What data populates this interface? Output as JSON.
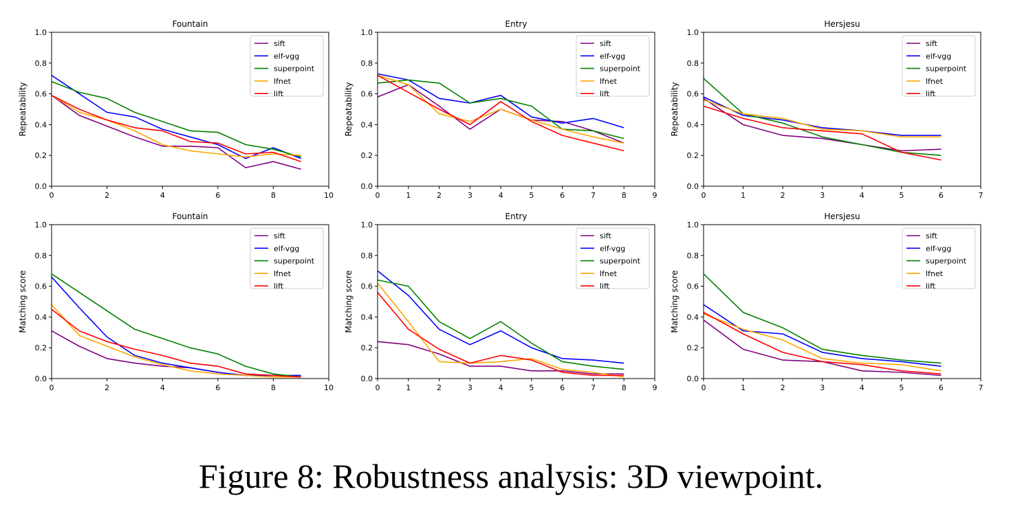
{
  "caption": "Figure 8: Robustness analysis: 3D viewpoint.",
  "series_colors": {
    "sift": "#800080",
    "elf-vgg": "#0000ff",
    "superpoint": "#008000",
    "lfnet": "#ffa500",
    "lift": "#ff0000"
  },
  "chart_data": [
    {
      "type": "line",
      "title": "Fountain",
      "xlabel": "",
      "ylabel": "Repeatability",
      "xlim": [
        0,
        10
      ],
      "ylim": [
        0,
        1
      ],
      "xticks": [
        0,
        2,
        4,
        6,
        8,
        10
      ],
      "yticks": [
        0.0,
        0.2,
        0.4,
        0.6,
        0.8,
        1.0
      ],
      "legend": "top-right",
      "x": [
        0,
        1,
        2,
        3,
        4,
        5,
        6,
        7,
        8,
        9
      ],
      "series": [
        {
          "name": "sift",
          "values": [
            0.59,
            0.46,
            0.39,
            0.32,
            0.26,
            0.26,
            0.25,
            0.12,
            0.16,
            0.11
          ]
        },
        {
          "name": "elf-vgg",
          "values": [
            0.72,
            0.6,
            0.48,
            0.45,
            0.37,
            0.32,
            0.27,
            0.18,
            0.25,
            0.18
          ]
        },
        {
          "name": "superpoint",
          "values": [
            0.68,
            0.61,
            0.57,
            0.48,
            0.42,
            0.36,
            0.35,
            0.27,
            0.24,
            0.19
          ]
        },
        {
          "name": "lfnet",
          "values": [
            0.59,
            0.48,
            0.43,
            0.36,
            0.27,
            0.23,
            0.21,
            0.19,
            0.21,
            0.2
          ]
        },
        {
          "name": "lift",
          "values": [
            0.59,
            0.5,
            0.43,
            0.38,
            0.36,
            0.29,
            0.28,
            0.21,
            0.22,
            0.16
          ]
        }
      ]
    },
    {
      "type": "line",
      "title": "Entry",
      "xlabel": "",
      "ylabel": "Repeatability",
      "xlim": [
        0,
        9
      ],
      "ylim": [
        0,
        1
      ],
      "xticks": [
        0,
        1,
        2,
        3,
        4,
        5,
        6,
        7,
        8,
        9
      ],
      "yticks": [
        0.0,
        0.2,
        0.4,
        0.6,
        0.8,
        1.0
      ],
      "legend": "top-right",
      "x": [
        0,
        1,
        2,
        3,
        4,
        5,
        6,
        7,
        8
      ],
      "series": [
        {
          "name": "sift",
          "values": [
            0.58,
            0.66,
            0.52,
            0.37,
            0.5,
            0.43,
            0.42,
            0.36,
            0.28
          ]
        },
        {
          "name": "elf-vgg",
          "values": [
            0.73,
            0.69,
            0.57,
            0.54,
            0.59,
            0.45,
            0.41,
            0.44,
            0.38
          ]
        },
        {
          "name": "superpoint",
          "values": [
            0.67,
            0.69,
            0.67,
            0.54,
            0.57,
            0.52,
            0.37,
            0.36,
            0.31
          ]
        },
        {
          "name": "lfnet",
          "values": [
            0.72,
            0.66,
            0.47,
            0.42,
            0.5,
            0.43,
            0.37,
            0.32,
            0.28
          ]
        },
        {
          "name": "lift",
          "values": [
            0.72,
            0.61,
            0.5,
            0.4,
            0.55,
            0.42,
            0.33,
            0.28,
            0.23
          ]
        }
      ]
    },
    {
      "type": "line",
      "title": "Hersjesu",
      "xlabel": "",
      "ylabel": "Repeatability",
      "xlim": [
        0,
        7
      ],
      "ylim": [
        0,
        1
      ],
      "xticks": [
        0,
        1,
        2,
        3,
        4,
        5,
        6,
        7
      ],
      "yticks": [
        0.0,
        0.2,
        0.4,
        0.6,
        0.8,
        1.0
      ],
      "legend": "top-right",
      "x": [
        0,
        1,
        2,
        3,
        4,
        5,
        6
      ],
      "series": [
        {
          "name": "sift",
          "values": [
            0.57,
            0.4,
            0.33,
            0.31,
            0.27,
            0.23,
            0.24
          ]
        },
        {
          "name": "elf-vgg",
          "values": [
            0.58,
            0.46,
            0.43,
            0.38,
            0.36,
            0.33,
            0.33
          ]
        },
        {
          "name": "superpoint",
          "values": [
            0.7,
            0.47,
            0.41,
            0.32,
            0.27,
            0.22,
            0.2
          ]
        },
        {
          "name": "lfnet",
          "values": [
            0.56,
            0.47,
            0.44,
            0.37,
            0.36,
            0.32,
            0.32
          ]
        },
        {
          "name": "lift",
          "values": [
            0.52,
            0.44,
            0.38,
            0.36,
            0.34,
            0.22,
            0.17
          ]
        }
      ]
    },
    {
      "type": "line",
      "title": "Fountain",
      "xlabel": "",
      "ylabel": "Matching score",
      "xlim": [
        0,
        10
      ],
      "ylim": [
        0,
        1
      ],
      "xticks": [
        0,
        2,
        4,
        6,
        8,
        10
      ],
      "yticks": [
        0.0,
        0.2,
        0.4,
        0.6,
        0.8,
        1.0
      ],
      "legend": "top-right",
      "x": [
        0,
        1,
        2,
        3,
        4,
        5,
        6,
        7,
        8,
        9
      ],
      "series": [
        {
          "name": "sift",
          "values": [
            0.31,
            0.21,
            0.13,
            0.1,
            0.08,
            0.07,
            0.04,
            0.02,
            0.02,
            0.02
          ]
        },
        {
          "name": "elf-vgg",
          "values": [
            0.66,
            0.46,
            0.27,
            0.15,
            0.1,
            0.07,
            0.04,
            0.02,
            0.02,
            0.02
          ]
        },
        {
          "name": "superpoint",
          "values": [
            0.68,
            0.56,
            0.44,
            0.32,
            0.26,
            0.2,
            0.16,
            0.08,
            0.03,
            0.01
          ]
        },
        {
          "name": "lfnet",
          "values": [
            0.48,
            0.28,
            0.21,
            0.14,
            0.09,
            0.05,
            0.03,
            0.02,
            0.01,
            0.01
          ]
        },
        {
          "name": "lift",
          "values": [
            0.45,
            0.31,
            0.24,
            0.19,
            0.15,
            0.1,
            0.08,
            0.03,
            0.02,
            0.01
          ]
        }
      ]
    },
    {
      "type": "line",
      "title": "Entry",
      "xlabel": "",
      "ylabel": "Matching score",
      "xlim": [
        0,
        9
      ],
      "ylim": [
        0,
        1
      ],
      "xticks": [
        0,
        1,
        2,
        3,
        4,
        5,
        6,
        7,
        8,
        9
      ],
      "yticks": [
        0.0,
        0.2,
        0.4,
        0.6,
        0.8,
        1.0
      ],
      "legend": "top-right",
      "x": [
        0,
        1,
        2,
        3,
        4,
        5,
        6,
        7,
        8
      ],
      "series": [
        {
          "name": "sift",
          "values": [
            0.24,
            0.22,
            0.16,
            0.08,
            0.08,
            0.05,
            0.05,
            0.03,
            0.03
          ]
        },
        {
          "name": "elf-vgg",
          "values": [
            0.7,
            0.54,
            0.32,
            0.22,
            0.31,
            0.2,
            0.13,
            0.12,
            0.1
          ]
        },
        {
          "name": "superpoint",
          "values": [
            0.64,
            0.6,
            0.37,
            0.26,
            0.37,
            0.23,
            0.11,
            0.08,
            0.06
          ]
        },
        {
          "name": "lfnet",
          "values": [
            0.62,
            0.37,
            0.11,
            0.1,
            0.11,
            0.13,
            0.06,
            0.04,
            0.01
          ]
        },
        {
          "name": "lift",
          "values": [
            0.56,
            0.32,
            0.19,
            0.1,
            0.15,
            0.12,
            0.04,
            0.02,
            0.02
          ]
        }
      ]
    },
    {
      "type": "line",
      "title": "Hersjesu",
      "xlabel": "",
      "ylabel": "Matching score",
      "xlim": [
        0,
        7
      ],
      "ylim": [
        0,
        1
      ],
      "xticks": [
        0,
        1,
        2,
        3,
        4,
        5,
        6,
        7
      ],
      "yticks": [
        0.0,
        0.2,
        0.4,
        0.6,
        0.8,
        1.0
      ],
      "legend": "top-right",
      "x": [
        0,
        1,
        2,
        3,
        4,
        5,
        6
      ],
      "series": [
        {
          "name": "sift",
          "values": [
            0.38,
            0.19,
            0.12,
            0.11,
            0.05,
            0.04,
            0.02
          ]
        },
        {
          "name": "elf-vgg",
          "values": [
            0.48,
            0.31,
            0.29,
            0.17,
            0.13,
            0.11,
            0.08
          ]
        },
        {
          "name": "superpoint",
          "values": [
            0.68,
            0.43,
            0.33,
            0.19,
            0.15,
            0.12,
            0.1
          ]
        },
        {
          "name": "lfnet",
          "values": [
            0.42,
            0.32,
            0.25,
            0.13,
            0.1,
            0.09,
            0.05
          ]
        },
        {
          "name": "lift",
          "values": [
            0.43,
            0.29,
            0.17,
            0.11,
            0.09,
            0.05,
            0.03
          ]
        }
      ]
    }
  ]
}
